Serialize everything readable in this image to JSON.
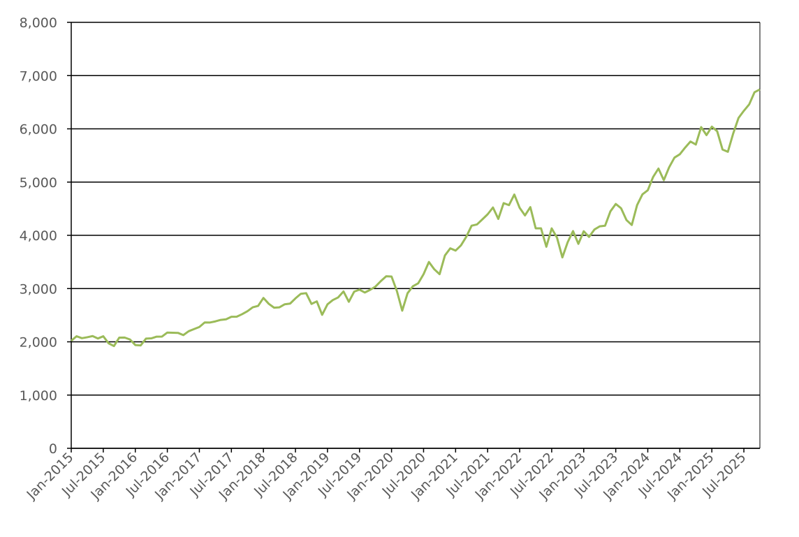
{
  "chart_data": {
    "type": "line",
    "x": [
      "2015-01",
      "2015-02",
      "2015-03",
      "2015-04",
      "2015-05",
      "2015-06",
      "2015-07",
      "2015-08",
      "2015-09",
      "2015-10",
      "2015-11",
      "2015-12",
      "2016-01",
      "2016-02",
      "2016-03",
      "2016-04",
      "2016-05",
      "2016-06",
      "2016-07",
      "2016-08",
      "2016-09",
      "2016-10",
      "2016-11",
      "2016-12",
      "2017-01",
      "2017-02",
      "2017-03",
      "2017-04",
      "2017-05",
      "2017-06",
      "2017-07",
      "2017-08",
      "2017-09",
      "2017-10",
      "2017-11",
      "2017-12",
      "2018-01",
      "2018-02",
      "2018-03",
      "2018-04",
      "2018-05",
      "2018-06",
      "2018-07",
      "2018-08",
      "2018-09",
      "2018-10",
      "2018-11",
      "2018-12",
      "2019-01",
      "2019-02",
      "2019-03",
      "2019-04",
      "2019-05",
      "2019-06",
      "2019-07",
      "2019-08",
      "2019-09",
      "2019-10",
      "2019-11",
      "2019-12",
      "2020-01",
      "2020-02",
      "2020-03",
      "2020-04",
      "2020-05",
      "2020-06",
      "2020-07",
      "2020-08",
      "2020-09",
      "2020-10",
      "2020-11",
      "2020-12",
      "2021-01",
      "2021-02",
      "2021-03",
      "2021-04",
      "2021-05",
      "2021-06",
      "2021-07",
      "2021-08",
      "2021-09",
      "2021-10",
      "2021-11",
      "2021-12",
      "2022-01",
      "2022-02",
      "2022-03",
      "2022-04",
      "2022-05",
      "2022-06",
      "2022-07",
      "2022-08",
      "2022-09",
      "2022-10",
      "2022-11",
      "2022-12",
      "2023-01",
      "2023-02",
      "2023-03",
      "2023-04",
      "2023-05",
      "2023-06",
      "2023-07",
      "2023-08",
      "2023-09",
      "2023-10",
      "2023-11",
      "2023-12",
      "2024-01",
      "2024-02",
      "2024-03",
      "2024-04",
      "2024-05",
      "2024-06",
      "2024-07",
      "2024-08",
      "2024-09",
      "2024-10",
      "2024-11",
      "2024-12",
      "2025-01",
      "2025-02",
      "2025-03",
      "2025-04",
      "2025-05",
      "2025-06",
      "2025-07",
      "2025-08",
      "2025-09",
      "2025-10"
    ],
    "series": [
      {
        "color": "#9bbb59",
        "values": [
          2020,
          2105,
          2068,
          2086,
          2108,
          2063,
          2104,
          1972,
          1920,
          2079,
          2080,
          2044,
          1940,
          1932,
          2060,
          2065,
          2097,
          2099,
          2174,
          2171,
          2168,
          2126,
          2199,
          2239,
          2279,
          2364,
          2363,
          2384,
          2412,
          2423,
          2470,
          2472,
          2519,
          2575,
          2648,
          2674,
          2824,
          2714,
          2641,
          2648,
          2705,
          2718,
          2816,
          2902,
          2914,
          2712,
          2760,
          2507,
          2704,
          2784,
          2834,
          2946,
          2752,
          2942,
          2980,
          2926,
          2977,
          3038,
          3141,
          3231,
          3226,
          2954,
          2585,
          2912,
          3044,
          3100,
          3271,
          3500,
          3363,
          3270,
          3622,
          3756,
          3714,
          3811,
          3973,
          4181,
          4204,
          4298,
          4395,
          4523,
          4308,
          4605,
          4567,
          4766,
          4516,
          4374,
          4530,
          4132,
          4132,
          3785,
          4130,
          3955,
          3586,
          3872,
          4080,
          3840,
          4077,
          3970,
          4109,
          4169,
          4180,
          4450,
          4589,
          4508,
          4288,
          4194,
          4568,
          4770,
          4846,
          5096,
          5254,
          5036,
          5278,
          5460,
          5522,
          5648,
          5762,
          5705,
          6032,
          5882,
          6041,
          5955,
          5612,
          5569,
          5912,
          6205,
          6339,
          6460,
          6688,
          6740
        ]
      }
    ],
    "xlim": [
      "2015-01",
      "2025-10"
    ],
    "xticks": [
      {
        "value": "2015-01",
        "label": "Jan-2015"
      },
      {
        "value": "2015-07",
        "label": "Jul-2015"
      },
      {
        "value": "2016-01",
        "label": "Jan-2016"
      },
      {
        "value": "2016-07",
        "label": "Jul-2016"
      },
      {
        "value": "2017-01",
        "label": "Jan-2017"
      },
      {
        "value": "2017-07",
        "label": "Jul-2017"
      },
      {
        "value": "2018-01",
        "label": "Jan-2018"
      },
      {
        "value": "2018-07",
        "label": "Jul-2018"
      },
      {
        "value": "2019-01",
        "label": "Jan-2019"
      },
      {
        "value": "2019-07",
        "label": "Jul-2019"
      },
      {
        "value": "2020-01",
        "label": "Jan-2020"
      },
      {
        "value": "2020-07",
        "label": "Jul-2020"
      },
      {
        "value": "2021-01",
        "label": "Jan-2021"
      },
      {
        "value": "2021-07",
        "label": "Jul-2021"
      },
      {
        "value": "2022-01",
        "label": "Jan-2022"
      },
      {
        "value": "2022-07",
        "label": "Jul-2022"
      },
      {
        "value": "2023-01",
        "label": "Jan-2023"
      },
      {
        "value": "2023-07",
        "label": "Jul-2023"
      },
      {
        "value": "2024-01",
        "label": "Jan-2024"
      },
      {
        "value": "2024-07",
        "label": "Jul-2024"
      },
      {
        "value": "2025-01",
        "label": "Jan-2025"
      },
      {
        "value": "2025-07",
        "label": "Jul-2025"
      }
    ],
    "ylim": [
      0,
      8000
    ],
    "yticks": [
      0,
      {
        "value": 1000,
        "label": "1,000"
      },
      {
        "value": 2000,
        "label": "2,000"
      },
      {
        "value": 3000,
        "label": "3,000"
      },
      {
        "value": 4000,
        "label": "4,000"
      },
      {
        "value": 5000,
        "label": "5,000"
      },
      {
        "value": 6000,
        "label": "6,000"
      },
      {
        "value": 7000,
        "label": "7,000"
      },
      {
        "value": 8000,
        "label": "8,000"
      }
    ],
    "grid": true
  }
}
